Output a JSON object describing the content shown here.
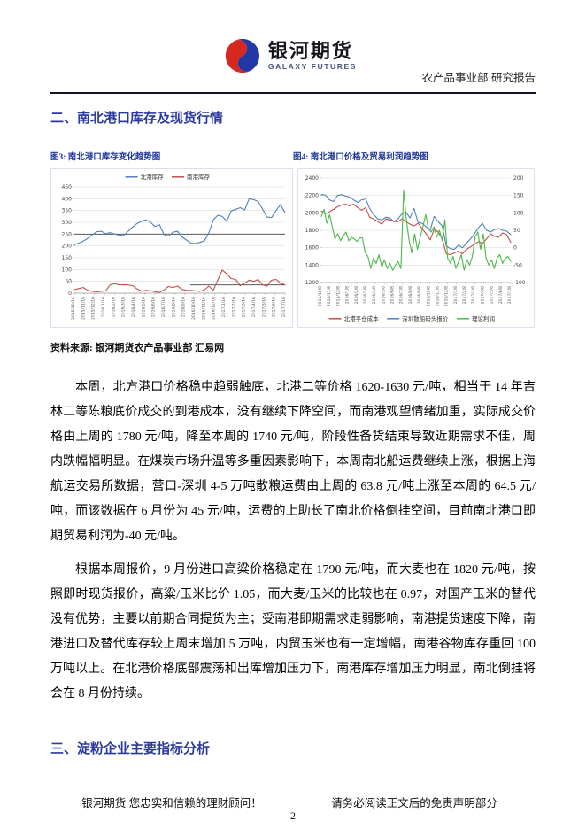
{
  "header": {
    "brand_cn": "银河期货",
    "brand_en": "GALAXY FUTURES",
    "dept_line": "农产品事业部 研究报告",
    "logo_red": "#d5281e",
    "logo_blue": "#2138a6"
  },
  "accent_blue": "#2b3a9e",
  "section2_title": "二、南北港口库存及现货行情",
  "figures": {
    "fig3_label": "图3:  南北港口库存变化趋势图",
    "fig4_label": "图4:  南北港口价格及贸易利润趋势图"
  },
  "source_line": "资料来源: 银河期货农产品事业部  汇易网",
  "paragraphs": {
    "p1": "本周，北方港口价格稳中趋弱触底，北港二等价格 1620-1630 元/吨，相当于 14 年吉林二等陈粮底价成交的到港成本，没有继续下降空间，而南港观望情绪加重，实际成交价格由上周的 1780 元/吨，降至本周的 1740 元/吨，阶段性备货结束导致近期需求不佳，周内跌幅幅明显。在煤炭市场升温等多重因素影响下，本周南北船运费继续上涨，根据上海航运交易所数据，营口-深圳 4-5 万吨散粮运费由上周的 63.8 元/吨上涨至本周的 64.5 元/吨，而该数据在 6 月份为 45 元/吨，运费的上助长了南北价格倒挂空间，目前南北港口即期贸易利润为-40 元/吨。",
    "p2": "根据本周报价，9 月份进口高粱价格稳定在 1790 元/吨，而大麦也在 1820 元/吨，按照即时现货报价，高粱/玉米比价 1.05，而大麦/玉米的比较也在 0.97，对国产玉米的替代没有优势，主要以前期合同提货为主；受南港即期需求走弱影响，南港提货速度下降，南港进口及替代库存较上周末增加 5 万吨，内贸玉米也有一定增幅，南港谷物库存重回 100 万吨以上。在北港价格底部震荡和出库增加压力下，南港库存增加压力明显，南北倒挂将会在 8 月份持续。"
  },
  "section3_title": "三、淀粉企业主要指标分析",
  "footer": {
    "left": "银河期货 您忠实和信赖的理财顾问！",
    "right": "请务必阅读正文后的免责声明部分",
    "page": "2"
  },
  "chart_data": [
    {
      "type": "line",
      "title": "南北港口库存变化趋势图",
      "legend_position": "top",
      "grid": true,
      "ylim": [
        0,
        450
      ],
      "ytick_step": 50,
      "categories": [
        "2015/10/16",
        "2015/11/16",
        "2015/12/16",
        "2016/1/16",
        "2016/2/16",
        "2016/3/16",
        "2016/4/16",
        "2016/5/16",
        "2016/6/16",
        "2016/7/16",
        "2016/8/16",
        "2016/9/16",
        "2016/10/16",
        "2016/11/16",
        "2016/12/16",
        "2017/1/16",
        "2017/2/16",
        "2017/3/16",
        "2017/4/16",
        "2017/5/16",
        "2017/6/16",
        "2017/7/16"
      ],
      "series": [
        {
          "name": "北港库存",
          "color": "#4f81bd",
          "values": [
            205,
            212,
            220,
            232,
            248,
            260,
            262,
            252,
            256,
            250,
            246,
            244,
            262,
            280,
            295,
            305,
            310,
            300,
            282,
            290,
            248,
            242,
            258,
            262,
            238,
            225,
            212,
            210,
            215,
            222,
            255,
            310,
            330,
            325,
            305,
            348,
            355,
            362,
            352,
            400,
            396,
            388,
            355,
            322,
            320,
            350,
            375,
            340
          ]
        },
        {
          "name": "南港库存",
          "color": "#c0504d",
          "values": [
            15,
            20,
            24,
            12,
            8,
            6,
            8,
            10,
            36,
            40,
            35,
            36,
            35,
            32,
            18,
            8,
            12,
            10,
            6,
            3,
            14,
            28,
            24,
            30,
            16,
            12,
            12,
            10,
            8,
            14,
            30,
            12,
            55,
            98,
            82,
            62,
            58,
            32,
            42,
            55,
            50,
            58,
            35,
            30,
            55,
            58,
            42,
            35
          ]
        }
      ],
      "ref_lines": [
        {
          "y": 250,
          "x0": 0,
          "x1": 1,
          "color": "#404040"
        },
        {
          "y": 35,
          "x0": 0.55,
          "x1": 1,
          "color": "#404040"
        }
      ]
    },
    {
      "type": "line",
      "title": "南北港口价格及贸易利润趋势图",
      "legend_position": "bottom",
      "grid": true,
      "ylim": [
        1200,
        2400
      ],
      "ytick_step": 200,
      "y2lim": [
        -100,
        200
      ],
      "y2tick_step": 50,
      "categories": [
        "2015/10/8",
        "2015/11/8",
        "2015/12/8",
        "2016/1/8",
        "2016/2/8",
        "2016/3/8",
        "2016/4/8",
        "2016/5/8",
        "2016/6/8",
        "2016/7/8",
        "2016/8/8",
        "2016/9/8",
        "2016/10/8",
        "2016/11/8",
        "2016/12/8",
        "2017/1/8",
        "2017/2/8",
        "2017/3/8",
        "2017/4/8",
        "2017/5/8",
        "2017/6/8",
        "2017/7/8"
      ],
      "series": [
        {
          "name": "北港平仓成本",
          "color": "#c0504d",
          "axis": "left",
          "values": [
            2020,
            1990,
            2010,
            2040,
            2070,
            2090,
            2100,
            2080,
            2100,
            2060,
            2030,
            2060,
            1950,
            1930,
            1900,
            1870,
            1930,
            1920,
            1900,
            1900,
            1930,
            1900,
            1870,
            1850,
            1880,
            1820,
            1760,
            1690,
            1810,
            1780,
            1700,
            1530,
            1520,
            1540,
            1560,
            1530,
            1580,
            1610,
            1640,
            1670,
            1650,
            1700,
            1760,
            1730,
            1720,
            1770,
            1750,
            1660
          ]
        },
        {
          "name": "深圳散船码头报价",
          "color": "#4f81bd",
          "axis": "left",
          "values": [
            2210,
            2205,
            2150,
            2130,
            2200,
            2210,
            2195,
            2180,
            2150,
            2120,
            2150,
            2160,
            2050,
            1980,
            1930,
            1920,
            1950,
            1940,
            1900,
            1930,
            1990,
            2010,
            1940,
            2050,
            1890,
            1880,
            1840,
            1800,
            1960,
            1900,
            1850,
            1620,
            1590,
            1580,
            1630,
            1600,
            1650,
            1700,
            1760,
            1830,
            1880,
            1800,
            1780,
            1810,
            1820,
            1800,
            1790,
            1750
          ]
        },
        {
          "name": "理论利润",
          "color": "#4bb848",
          "axis": "right",
          "values": [
            90,
            110,
            70,
            95,
            60,
            25,
            40,
            20,
            35,
            45,
            20,
            30,
            25,
            18,
            28,
            28,
            -15,
            -25,
            -60,
            -30,
            -45,
            -20,
            -55,
            -35,
            -60,
            -45,
            -65,
            -50,
            -40,
            -60,
            165,
            80,
            20,
            -15,
            40,
            -5,
            30,
            60,
            95,
            55,
            45,
            60,
            30,
            50,
            20,
            80,
            -30,
            -45,
            -25,
            -60,
            -40,
            -20,
            -65,
            -35,
            -50,
            -25,
            30,
            45,
            -5,
            40,
            -30,
            -50,
            -35,
            -60,
            -30,
            -20,
            -45,
            -30,
            -25,
            -40
          ]
        }
      ]
    }
  ]
}
